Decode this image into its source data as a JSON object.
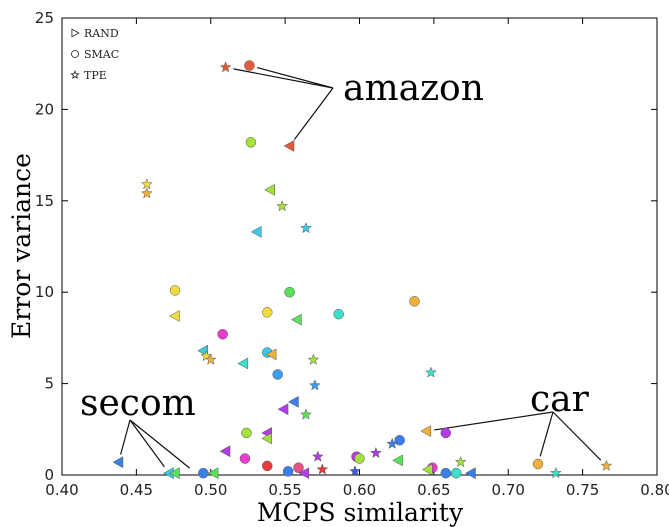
{
  "chart_data": {
    "type": "scatter",
    "title": "",
    "xlabel": "MCPS  similarity",
    "ylabel": "Error variance",
    "xlim": [
      0.4,
      0.8
    ],
    "ylim": [
      0,
      25
    ],
    "xticks": [
      "0.40",
      "0.45",
      "0.50",
      "0.55",
      "0.60",
      "0.65",
      "0.70",
      "0.75",
      "0.80"
    ],
    "yticks": [
      "0",
      "5",
      "10",
      "15",
      "20",
      "25"
    ],
    "grid": false,
    "legend_position": "top-left",
    "legend": [
      {
        "marker": "triangle",
        "label": "RAND"
      },
      {
        "marker": "circle",
        "label": "SMAC"
      },
      {
        "marker": "star",
        "label": "TPE"
      }
    ],
    "annotations": [
      {
        "text": "amazon",
        "points": [
          [
            0.51,
            22.3
          ],
          [
            0.526,
            22.4
          ],
          [
            0.553,
            18.0
          ]
        ]
      },
      {
        "text": "secom",
        "points": [
          [
            0.438,
            0.7
          ],
          [
            0.472,
            0.1
          ],
          [
            0.49,
            0.1
          ]
        ]
      },
      {
        "text": "car",
        "points": [
          [
            0.645,
            2.4
          ],
          [
            0.72,
            0.6
          ],
          [
            0.766,
            0.5
          ]
        ]
      }
    ],
    "points": [
      {
        "x": 0.51,
        "y": 22.3,
        "marker": "star",
        "color": "#e35b3a"
      },
      {
        "x": 0.526,
        "y": 22.4,
        "marker": "circle",
        "color": "#e35b3a"
      },
      {
        "x": 0.553,
        "y": 18.0,
        "marker": "triangle",
        "color": "#e35b3a"
      },
      {
        "x": 0.527,
        "y": 18.2,
        "marker": "circle",
        "color": "#a6e03c"
      },
      {
        "x": 0.54,
        "y": 15.6,
        "marker": "triangle",
        "color": "#a6e03c"
      },
      {
        "x": 0.457,
        "y": 15.9,
        "marker": "star",
        "color": "#f0dc3c"
      },
      {
        "x": 0.457,
        "y": 15.4,
        "marker": "star",
        "color": "#f0b03c"
      },
      {
        "x": 0.548,
        "y": 14.7,
        "marker": "star",
        "color": "#a6e03c"
      },
      {
        "x": 0.531,
        "y": 13.3,
        "marker": "triangle",
        "color": "#3cc8e8"
      },
      {
        "x": 0.564,
        "y": 13.5,
        "marker": "star",
        "color": "#3cc8e8"
      },
      {
        "x": 0.476,
        "y": 10.1,
        "marker": "circle",
        "color": "#f0dc3c"
      },
      {
        "x": 0.553,
        "y": 10.0,
        "marker": "circle",
        "color": "#5ae05a"
      },
      {
        "x": 0.637,
        "y": 9.5,
        "marker": "circle",
        "color": "#f0b03c"
      },
      {
        "x": 0.538,
        "y": 8.9,
        "marker": "circle",
        "color": "#f0dc3c"
      },
      {
        "x": 0.586,
        "y": 8.8,
        "marker": "circle",
        "color": "#3ce0c8"
      },
      {
        "x": 0.476,
        "y": 8.7,
        "marker": "triangle",
        "color": "#f0dc3c"
      },
      {
        "x": 0.558,
        "y": 8.5,
        "marker": "triangle",
        "color": "#5ae05a"
      },
      {
        "x": 0.508,
        "y": 7.7,
        "marker": "circle",
        "color": "#e83ccc"
      },
      {
        "x": 0.495,
        "y": 6.8,
        "marker": "triangle",
        "color": "#3cc8e8"
      },
      {
        "x": 0.538,
        "y": 6.7,
        "marker": "circle",
        "color": "#3cc8e8"
      },
      {
        "x": 0.541,
        "y": 6.6,
        "marker": "triangle",
        "color": "#f0b03c"
      },
      {
        "x": 0.497,
        "y": 6.5,
        "marker": "star",
        "color": "#f0dc3c"
      },
      {
        "x": 0.5,
        "y": 6.3,
        "marker": "star",
        "color": "#f0b03c"
      },
      {
        "x": 0.569,
        "y": 6.3,
        "marker": "star",
        "color": "#a6e03c"
      },
      {
        "x": 0.522,
        "y": 6.1,
        "marker": "triangle",
        "color": "#3ce0c8"
      },
      {
        "x": 0.545,
        "y": 5.5,
        "marker": "circle",
        "color": "#3c9ee8"
      },
      {
        "x": 0.648,
        "y": 5.6,
        "marker": "star",
        "color": "#3ce0c8"
      },
      {
        "x": 0.57,
        "y": 4.9,
        "marker": "star",
        "color": "#3c9ee8"
      },
      {
        "x": 0.556,
        "y": 4.0,
        "marker": "triangle",
        "color": "#3c7ee8"
      },
      {
        "x": 0.549,
        "y": 3.6,
        "marker": "triangle",
        "color": "#b43ce8"
      },
      {
        "x": 0.564,
        "y": 3.3,
        "marker": "star",
        "color": "#5ae05a"
      },
      {
        "x": 0.524,
        "y": 2.3,
        "marker": "circle",
        "color": "#a6e03c"
      },
      {
        "x": 0.538,
        "y": 2.3,
        "marker": "triangle",
        "color": "#b43ce8"
      },
      {
        "x": 0.538,
        "y": 2.0,
        "marker": "triangle",
        "color": "#a6e03c"
      },
      {
        "x": 0.645,
        "y": 2.4,
        "marker": "triangle",
        "color": "#f0b03c"
      },
      {
        "x": 0.627,
        "y": 1.9,
        "marker": "circle",
        "color": "#3c7ee8"
      },
      {
        "x": 0.622,
        "y": 1.7,
        "marker": "star",
        "color": "#3c7ee8"
      },
      {
        "x": 0.658,
        "y": 2.3,
        "marker": "circle",
        "color": "#b43ce8"
      },
      {
        "x": 0.51,
        "y": 1.3,
        "marker": "triangle",
        "color": "#b43ce8"
      },
      {
        "x": 0.523,
        "y": 0.9,
        "marker": "circle",
        "color": "#e83ccc"
      },
      {
        "x": 0.572,
        "y": 1.0,
        "marker": "star",
        "color": "#b43ce8"
      },
      {
        "x": 0.598,
        "y": 1.0,
        "marker": "circle",
        "color": "#b43ce8"
      },
      {
        "x": 0.6,
        "y": 0.9,
        "marker": "circle",
        "color": "#a6e03c"
      },
      {
        "x": 0.611,
        "y": 1.2,
        "marker": "star",
        "color": "#b43ce8"
      },
      {
        "x": 0.626,
        "y": 0.8,
        "marker": "triangle",
        "color": "#5ae05a"
      },
      {
        "x": 0.668,
        "y": 0.7,
        "marker": "star",
        "color": "#a6e03c"
      },
      {
        "x": 0.72,
        "y": 0.6,
        "marker": "circle",
        "color": "#f0b03c"
      },
      {
        "x": 0.766,
        "y": 0.5,
        "marker": "star",
        "color": "#f0b03c"
      },
      {
        "x": 0.438,
        "y": 0.7,
        "marker": "triangle",
        "color": "#3c7ee8"
      },
      {
        "x": 0.538,
        "y": 0.5,
        "marker": "circle",
        "color": "#e83c3c"
      },
      {
        "x": 0.559,
        "y": 0.4,
        "marker": "circle",
        "color": "#e8508c"
      },
      {
        "x": 0.575,
        "y": 0.3,
        "marker": "star",
        "color": "#e83c3c"
      },
      {
        "x": 0.649,
        "y": 0.4,
        "marker": "circle",
        "color": "#e83ccc"
      },
      {
        "x": 0.646,
        "y": 0.3,
        "marker": "triangle",
        "color": "#a6e03c"
      },
      {
        "x": 0.552,
        "y": 0.2,
        "marker": "circle",
        "color": "#3c7ee8"
      },
      {
        "x": 0.597,
        "y": 0.2,
        "marker": "star",
        "color": "#3c5ae8"
      },
      {
        "x": 0.472,
        "y": 0.1,
        "marker": "triangle",
        "color": "#3cc8e8"
      },
      {
        "x": 0.476,
        "y": 0.1,
        "marker": "triangle",
        "color": "#5ae05a"
      },
      {
        "x": 0.495,
        "y": 0.1,
        "marker": "circle",
        "color": "#3c7ee8"
      },
      {
        "x": 0.502,
        "y": 0.1,
        "marker": "triangle",
        "color": "#5ae05a"
      },
      {
        "x": 0.563,
        "y": 0.1,
        "marker": "triangle",
        "color": "#b43ce8"
      },
      {
        "x": 0.658,
        "y": 0.1,
        "marker": "circle",
        "color": "#3c7ee8"
      },
      {
        "x": 0.665,
        "y": 0.1,
        "marker": "circle",
        "color": "#3ce0c8"
      },
      {
        "x": 0.675,
        "y": 0.1,
        "marker": "triangle",
        "color": "#3c7ee8"
      },
      {
        "x": 0.732,
        "y": 0.1,
        "marker": "star",
        "color": "#3ce0c8"
      }
    ]
  }
}
